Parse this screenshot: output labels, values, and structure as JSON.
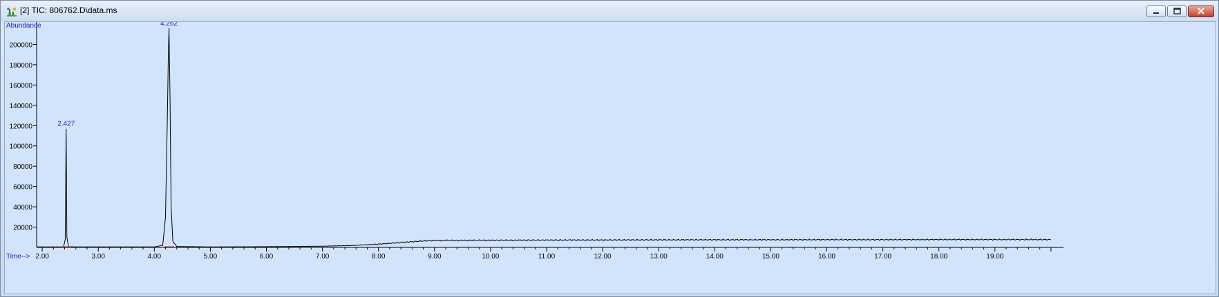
{
  "window": {
    "title": "[2] TIC: 806762.D\\data.ms",
    "buttons": [
      "minimize",
      "maximize",
      "close"
    ],
    "icons": {
      "app": "chromatogram-app-icon",
      "minimize": "minimize-icon",
      "maximize": "maximize-icon",
      "close": "close-icon"
    }
  },
  "colors": {
    "plot_background": "#d2e3fc",
    "trace": "#000000",
    "labels": "#1a1acc",
    "baseline_marker": "#e0303a"
  },
  "chart_data": {
    "type": "line",
    "ylabel": "Abundance",
    "xlabel": "Time-->",
    "xlim": [
      1.9,
      20.1
    ],
    "ylim": [
      0,
      220000
    ],
    "x_ticks": [
      "2.00",
      "3.00",
      "4.00",
      "5.00",
      "6.00",
      "7.00",
      "8.00",
      "9.00",
      "10.00",
      "11.00",
      "12.00",
      "13.00",
      "14.00",
      "15.00",
      "16.00",
      "17.00",
      "18.00",
      "19.00"
    ],
    "y_ticks": [
      "20000",
      "40000",
      "60000",
      "80000",
      "100000",
      "120000",
      "140000",
      "160000",
      "180000",
      "200000"
    ],
    "grid": false,
    "peaks": [
      {
        "label": "2.427",
        "time": 2.427,
        "abundance": 117000
      },
      {
        "label": "4.262",
        "time": 4.262,
        "abundance": 216000
      }
    ],
    "series": [
      {
        "x": [
          1.9,
          2.38,
          2.41,
          2.427,
          2.44,
          2.47,
          2.6,
          4.0,
          4.15,
          4.2,
          4.23,
          4.25,
          4.262,
          4.28,
          4.3,
          4.33,
          4.4,
          5.0,
          6.0,
          7.0,
          7.5,
          8.0,
          8.5,
          8.8,
          9.0,
          10.0,
          11.0,
          12.0,
          13.0,
          14.0,
          15.0,
          16.0,
          17.0,
          18.0,
          19.0,
          20.0
        ],
        "y": [
          500,
          500,
          8000,
          117000,
          10000,
          800,
          500,
          500,
          2000,
          30000,
          120000,
          190000,
          216000,
          150000,
          40000,
          6000,
          900,
          500,
          700,
          1200,
          1800,
          3200,
          5200,
          6300,
          6800,
          7000,
          7200,
          7300,
          7400,
          7500,
          7500,
          7600,
          7600,
          7700,
          7700,
          7700
        ]
      }
    ]
  }
}
